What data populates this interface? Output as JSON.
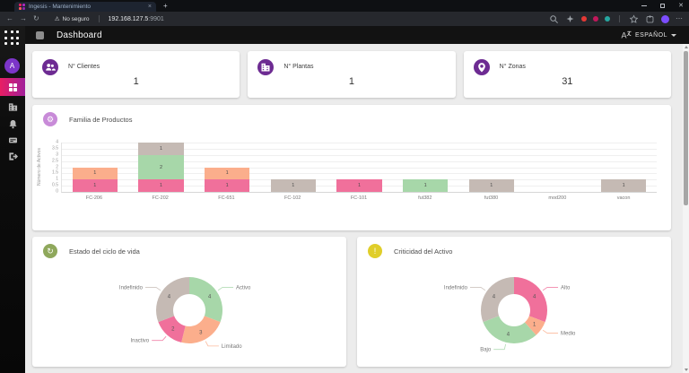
{
  "browser": {
    "tab_title": "Ingesis - Mantenimiento",
    "security_badge": "No seguro",
    "url_host": "192.168.127.5",
    "url_port": ":9901"
  },
  "header": {
    "title": "Dashboard",
    "language": "ESPAÑOL"
  },
  "sidebar": {
    "avatar_letter": "A"
  },
  "stats": [
    {
      "label": "N° Clientes",
      "value": "1"
    },
    {
      "label": "N° Plantas",
      "value": "1"
    },
    {
      "label": "N° Zonas",
      "value": "31"
    }
  ],
  "icons": {
    "sidebar": [
      "apps-logo-icon",
      "dashboard-icon",
      "factory-icon",
      "bell-icon",
      "card-icon",
      "logout-icon"
    ],
    "stat_cards": [
      "users-icon",
      "factory-icon",
      "map-pin-icon"
    ],
    "chart_headers": [
      "gear-icon",
      "refresh-icon",
      "alert-icon"
    ],
    "header": [
      "menu-icon",
      "translate-icon",
      "chevron-down-icon"
    ]
  },
  "chart_data": [
    {
      "type": "bar",
      "stacked": true,
      "title": "Familia de Productos",
      "ylabel": "Número de Activos",
      "ylim": [
        0,
        4
      ],
      "yticks": [
        0,
        0.5,
        1,
        1.5,
        2,
        2.5,
        3,
        3.5,
        4
      ],
      "grid": true,
      "legend": false,
      "categories": [
        "FC-206",
        "FC-202",
        "FC-651",
        "FC-102",
        "FC-101",
        "fut382",
        "fut380",
        "mod200",
        "vacon"
      ],
      "series": [
        {
          "name": "pink",
          "color": "#f0709b",
          "values": [
            1,
            1,
            1,
            0,
            1,
            0,
            0,
            0,
            0
          ]
        },
        {
          "name": "orange",
          "color": "#fbae8c",
          "values": [
            1,
            0,
            1,
            0,
            0,
            0,
            0,
            0,
            0
          ]
        },
        {
          "name": "green",
          "color": "#a7d7a9",
          "values": [
            0,
            2,
            0,
            0,
            0,
            1,
            0,
            0,
            0
          ]
        },
        {
          "name": "gray",
          "color": "#c5bab4",
          "values": [
            0,
            1,
            0,
            1,
            0,
            0,
            1,
            0,
            1
          ]
        }
      ]
    },
    {
      "type": "pie",
      "subtype": "donut",
      "title": "Estado del ciclo de vida",
      "legend_position": "callout-labels",
      "slices": [
        {
          "label": "Activo",
          "value": 4,
          "color": "#a7d7a9"
        },
        {
          "label": "Limitado",
          "value": 3,
          "color": "#fbae8c"
        },
        {
          "label": "Inactivo",
          "value": 2,
          "color": "#f0709b"
        },
        {
          "label": "Indefinido",
          "value": 4,
          "color": "#c5bab4"
        }
      ]
    },
    {
      "type": "pie",
      "subtype": "donut",
      "title": "Criticidad del Activo",
      "legend_position": "callout-labels",
      "slices": [
        {
          "label": "Alto",
          "value": 4,
          "color": "#f0709b"
        },
        {
          "label": "Medio",
          "value": 1,
          "color": "#fbae8c"
        },
        {
          "label": "Bajo",
          "value": 4,
          "color": "#a7d7a9"
        },
        {
          "label": "Indefinido",
          "value": 4,
          "color": "#c5bab4"
        }
      ]
    }
  ]
}
